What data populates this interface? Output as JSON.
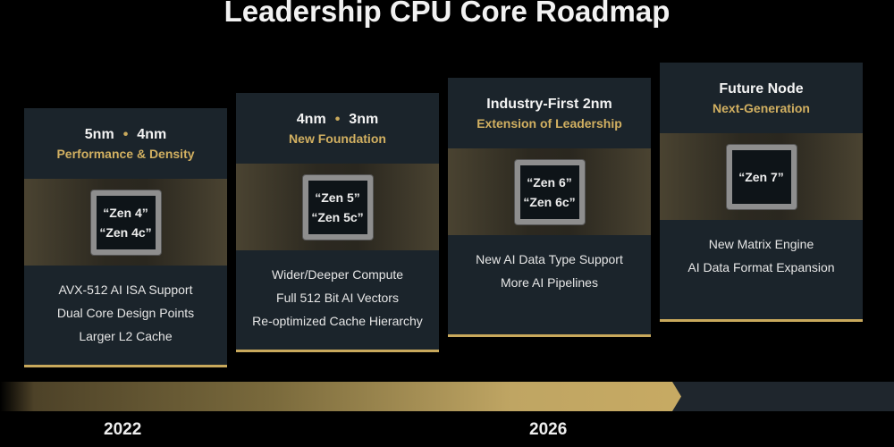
{
  "title": "Leadership CPU Core Roadmap",
  "cards": [
    {
      "node_a": "5nm",
      "node_b": "4nm",
      "subtitle": "Performance & Density",
      "cores": [
        "“Zen 4”",
        "“Zen 4c”"
      ],
      "features": [
        "AVX-512 AI ISA Support",
        "Dual Core Design Points",
        "Larger L2 Cache"
      ]
    },
    {
      "node_a": "4nm",
      "node_b": "3nm",
      "subtitle": "New Foundation",
      "cores": [
        "“Zen 5”",
        "“Zen 5c”"
      ],
      "features": [
        "Wider/Deeper Compute",
        "Full 512 Bit AI Vectors",
        "Re-optimized Cache Hierarchy"
      ]
    },
    {
      "node_a": "Industry-First 2nm",
      "subtitle": "Extension of Leadership",
      "cores": [
        "“Zen 6”",
        "“Zen 6c”"
      ],
      "features": [
        "New AI Data Type Support",
        "More AI Pipelines"
      ]
    },
    {
      "node_a": "Future Node",
      "subtitle": "Next-Generation",
      "cores": [
        "“Zen 7”"
      ],
      "features": [
        "New Matrix Engine",
        "AI Data Format Expansion"
      ]
    }
  ],
  "timeline": {
    "years": [
      "2022",
      "2026"
    ]
  },
  "colors": {
    "gold": "#c9a95c",
    "card": "#1b242b",
    "background": "#000000"
  }
}
